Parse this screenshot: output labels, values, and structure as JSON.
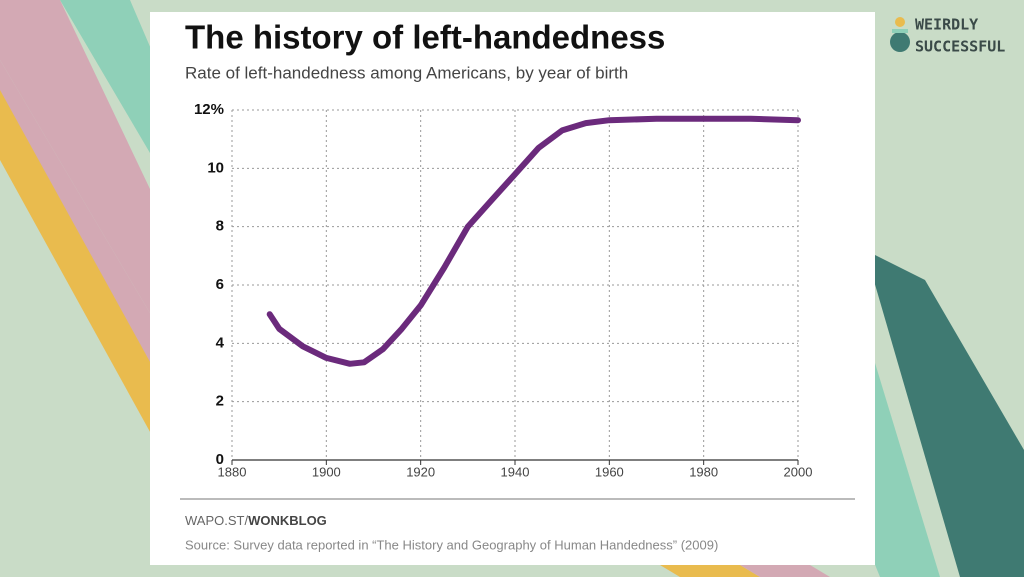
{
  "branding": {
    "line1": "WEIRDLY",
    "line2": "SUCCESSFUL"
  },
  "chart_data": {
    "type": "line",
    "title": "The history of left-handedness",
    "subtitle": "Rate of left-handedness among Americans, by year of birth",
    "x": [
      1888,
      1890,
      1895,
      1900,
      1905,
      1908,
      1912,
      1916,
      1920,
      1925,
      1930,
      1935,
      1940,
      1945,
      1950,
      1955,
      1960,
      1970,
      1980,
      1990,
      2000
    ],
    "values": [
      5.0,
      4.5,
      3.9,
      3.5,
      3.3,
      3.35,
      3.8,
      4.5,
      5.3,
      6.6,
      8.0,
      8.9,
      9.8,
      10.7,
      11.3,
      11.55,
      11.65,
      11.7,
      11.7,
      11.7,
      11.65
    ],
    "color": "#6b2a7c",
    "xlim": [
      1880,
      2000
    ],
    "xticks": [
      1880,
      1900,
      1920,
      1940,
      1960,
      1980,
      2000
    ],
    "ylim": [
      0,
      12
    ],
    "yticks": [
      0,
      2,
      4,
      6,
      8,
      10,
      {
        "value": 12,
        "label": "12%"
      }
    ],
    "grid": true,
    "credit_prefix": "WAPO.ST/",
    "credit_name": "WONKBLOG",
    "source": "Source: Survey data reported in “The History and Geography of Human Handedness” (2009)"
  }
}
